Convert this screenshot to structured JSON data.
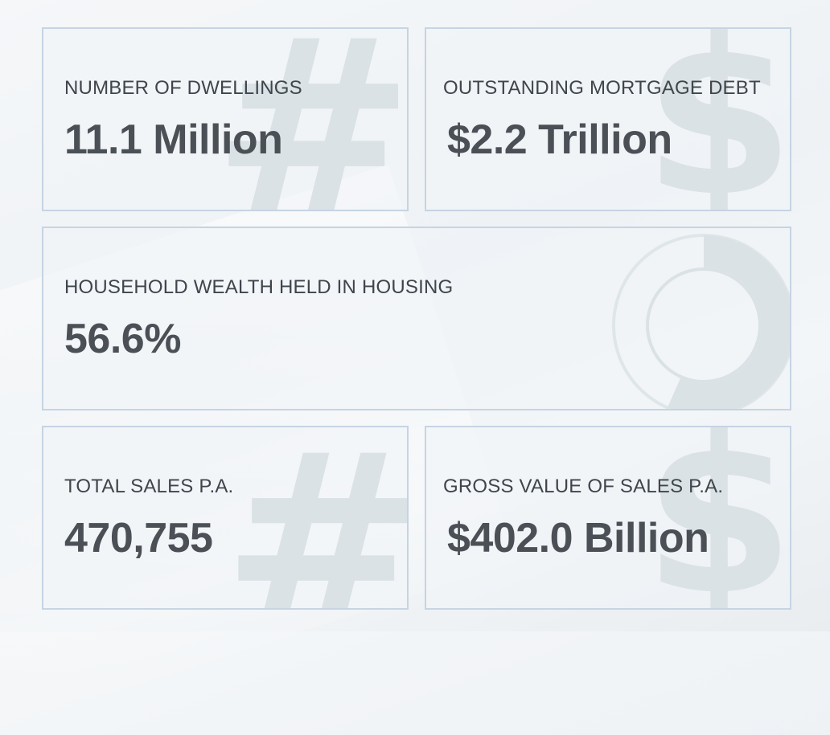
{
  "stats": {
    "dwellings": {
      "label": "NUMBER OF DWELLINGS",
      "value": "11.1 Million",
      "icon": "hash-icon"
    },
    "mortgage": {
      "label": "OUTSTANDING MORTGAGE DEBT",
      "value": "$2.2 Trillion",
      "icon": "dollar-icon"
    },
    "wealth": {
      "label": "HOUSEHOLD WEALTH HELD IN HOUSING",
      "value": "56.6%",
      "icon": "donut-icon",
      "fraction": 0.566
    },
    "sales": {
      "label": "TOTAL SALES P.A.",
      "value": "470,755",
      "icon": "hash-icon"
    },
    "gross": {
      "label": "GROSS VALUE OF SALES P.A.",
      "value": "$402.0 Billion",
      "icon": "dollar-icon"
    }
  },
  "watermarks": {
    "hash": "#",
    "dollar": "$"
  },
  "colors": {
    "border": "#c6d4e3",
    "label_text": "#3f454c",
    "value_text": "#4b5057",
    "watermark": "#dae2e5"
  }
}
